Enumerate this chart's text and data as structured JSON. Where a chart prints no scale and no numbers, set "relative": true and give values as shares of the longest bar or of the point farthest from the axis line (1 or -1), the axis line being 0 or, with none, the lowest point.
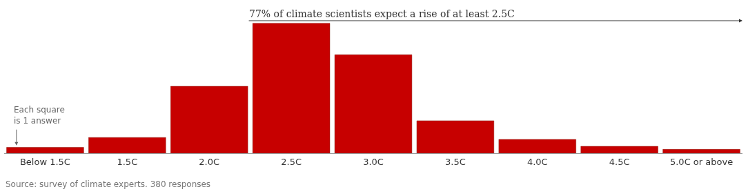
{
  "chart_data": {
    "type": "bar",
    "relative": true,
    "categories": [
      "Below 1.5C",
      "1.5C",
      "2.0C",
      "2.5C",
      "3.0C",
      "3.5C",
      "4.0C",
      "4.5C",
      "5.0C or above"
    ],
    "values": [
      0.045,
      0.121,
      0.515,
      1,
      0.758,
      0.25,
      0.106,
      0.053,
      0.03
    ],
    "color": "#c70000",
    "annotations": [
      "77% of climate scientists expect a rise of at least 2.5C",
      "Each square is 1 answer",
      "Source: survey of climate experts. 380 responses"
    ]
  }
}
